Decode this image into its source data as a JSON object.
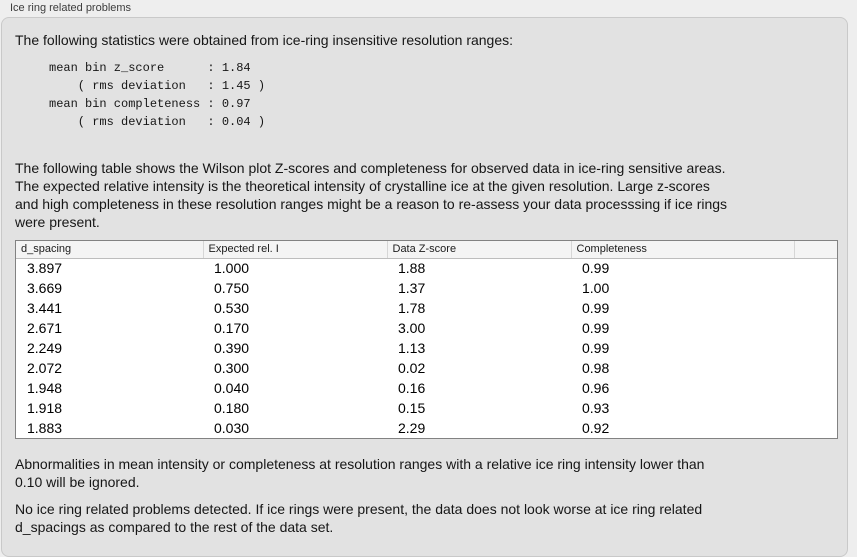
{
  "window": {
    "group_label": "Ice ring related problems"
  },
  "intro": {
    "text": "The following statistics were obtained from ice-ring insensitive resolution ranges:",
    "stats_block": [
      "mean bin z_score      : 1.84",
      "    ( rms deviation   : 1.45 )",
      "mean bin completeness : 0.97",
      "    ( rms deviation   : 0.04 )"
    ]
  },
  "description": {
    "lines": [
      "The following table shows the Wilson plot Z-scores and completeness for observed data in ice-ring sensitive areas.",
      "The expected relative intensity is the theoretical intensity of crystalline ice at the given resolution. Large z-scores",
      "and high completeness in these resolution ranges might be a reason to re-assess your data processsing if ice rings",
      "were present."
    ]
  },
  "table": {
    "columns": [
      "d_spacing",
      "Expected rel. I",
      "Data Z-score",
      "Completeness",
      ""
    ],
    "rows": [
      [
        "3.897",
        "1.000",
        "1.88",
        "0.99",
        ""
      ],
      [
        "3.669",
        "0.750",
        "1.37",
        "1.00",
        ""
      ],
      [
        "3.441",
        "0.530",
        "1.78",
        "0.99",
        ""
      ],
      [
        "2.671",
        "0.170",
        "3.00",
        "0.99",
        ""
      ],
      [
        "2.249",
        "0.390",
        "1.13",
        "0.99",
        ""
      ],
      [
        "2.072",
        "0.300",
        "0.02",
        "0.98",
        ""
      ],
      [
        "1.948",
        "0.040",
        "0.16",
        "0.96",
        ""
      ],
      [
        "1.918",
        "0.180",
        "0.15",
        "0.93",
        ""
      ],
      [
        "1.883",
        "0.030",
        "2.29",
        "0.92",
        ""
      ]
    ]
  },
  "notes": {
    "ignore_note_lines": [
      "Abnormalities in mean intensity or completeness at resolution ranges with a relative ice ring intensity lower than",
      "0.10 will be ignored."
    ],
    "conclusion_lines": [
      "No ice ring related problems detected. If ice rings were present, the data does not look worse at ice ring related",
      "d_spacings as compared to the rest of the data set."
    ]
  },
  "colors": {
    "page_bg": "#eeeeee",
    "panel_bg": "#e2e2e2",
    "panel_border": "#c9c9c9",
    "table_bg": "#ffffff",
    "table_border": "#828282",
    "header_bg": "#f4f4f4",
    "text": "#161616"
  }
}
